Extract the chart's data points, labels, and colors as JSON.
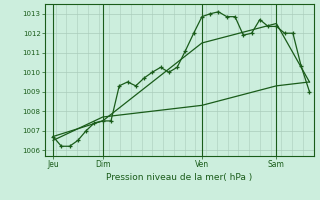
{
  "title": "Pression niveau de la mer( hPa )",
  "bg_color": "#cceedd",
  "grid_major_color": "#aaccbb",
  "grid_minor_color": "#bbddcc",
  "line_color": "#1a5c1a",
  "ylim": [
    1005.7,
    1013.5
  ],
  "yticks": [
    1006,
    1007,
    1008,
    1009,
    1010,
    1011,
    1012,
    1013
  ],
  "day_lines": [
    {
      "label": "Jeu",
      "x": 0.0
    },
    {
      "label": "Dim",
      "x": 24.0
    },
    {
      "label": "Ven",
      "x": 72.0
    },
    {
      "label": "Sam",
      "x": 108.0
    }
  ],
  "xlim": [
    -4,
    126
  ],
  "line1_x": [
    0,
    4,
    8,
    12,
    16,
    20,
    24,
    28,
    32,
    36,
    40,
    44,
    48,
    52,
    56,
    60,
    64,
    68,
    72,
    76,
    80,
    84,
    88,
    92,
    96,
    100,
    104,
    108,
    112,
    116,
    120,
    124
  ],
  "line1_y": [
    1006.7,
    1006.2,
    1006.2,
    1006.5,
    1007.0,
    1007.4,
    1007.5,
    1007.5,
    1009.3,
    1009.5,
    1009.3,
    1009.7,
    1010.0,
    1010.25,
    1010.0,
    1010.25,
    1011.1,
    1012.0,
    1012.85,
    1013.0,
    1013.1,
    1012.85,
    1012.85,
    1011.9,
    1012.0,
    1012.7,
    1012.35,
    1012.35,
    1012.0,
    1012.0,
    1010.3,
    1009.0
  ],
  "line2_x": [
    0,
    24,
    72,
    90,
    108,
    124
  ],
  "line2_y": [
    1006.7,
    1007.5,
    1011.5,
    1012.0,
    1012.5,
    1009.5
  ],
  "line3_x": [
    0,
    24,
    72,
    90,
    108,
    124
  ],
  "line3_y": [
    1006.5,
    1007.7,
    1008.3,
    1008.8,
    1009.3,
    1009.5
  ],
  "num_minor_v": 26
}
